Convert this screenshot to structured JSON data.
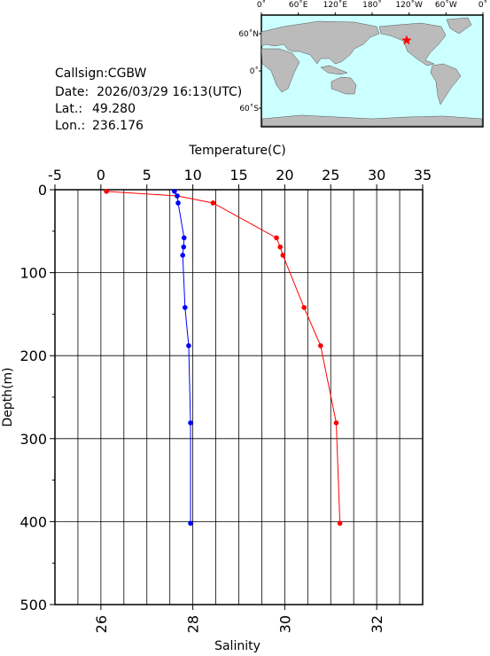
{
  "info": {
    "callsign": "Callsign:CGBW",
    "date": "Date:  2026/03/29 16:13(UTC)",
    "lat_label": "Lat.:",
    "lat": {
      "value": 49.28,
      "label": "49.280"
    },
    "lon_label": "Lon.:",
    "lon": {
      "value": 236.176,
      "label": "236.176"
    }
  },
  "map": {
    "lon_labels": [
      "0˚",
      "60˚E",
      "120˚E",
      "180˚",
      "120˚W",
      "60˚W",
      "0˚"
    ],
    "lat_labels": [
      "60˚N",
      "0˚",
      "60˚S"
    ],
    "star_color": "#ff0000"
  },
  "chart_data": {
    "type": "line",
    "ylabel": "Depth(m)",
    "ylim": [
      0,
      500
    ],
    "yticks": [
      0,
      100,
      200,
      300,
      400,
      500
    ],
    "y_minor_ticks": [
      50,
      150,
      250,
      350,
      450
    ],
    "depth": [
      2,
      7.5,
      16,
      58,
      69,
      79,
      142,
      188,
      281,
      402
    ],
    "top_axis": {
      "label": "Temperature(C)",
      "lim": [
        -5,
        35
      ],
      "ticks": [
        -5,
        0,
        5,
        10,
        15,
        20,
        25,
        30,
        35
      ]
    },
    "bottom_axis": {
      "label": "Salinity",
      "lim": [
        25,
        33
      ],
      "ticks": [
        26,
        28,
        30,
        32
      ],
      "grid": [
        25.5,
        26,
        26.5,
        27,
        27.5,
        28,
        28.5,
        29,
        29.5,
        30,
        30.5,
        31,
        31.5,
        32,
        32.5
      ]
    },
    "grid": true,
    "series": [
      {
        "axis": "top",
        "color": "#ff0000",
        "values": [
          0.6,
          8.3,
          12.2,
          19.1,
          19.5,
          19.8,
          22.1,
          23.9,
          25.6,
          26.0
        ]
      },
      {
        "axis": "bottom",
        "color": "#0000ff",
        "values": [
          27.6,
          27.66,
          27.68,
          27.81,
          27.8,
          27.78,
          27.83,
          27.91,
          27.95,
          27.95
        ]
      }
    ]
  }
}
